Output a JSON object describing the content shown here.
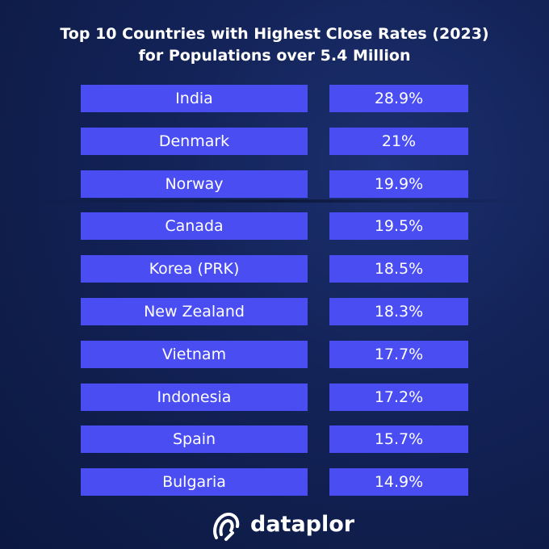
{
  "header": {
    "title": [
      "Top 10 Countries with Highest Close Rates (2023)",
      "for Populations over 5.4 Million"
    ]
  },
  "table": {
    "rows": [
      [
        "India",
        "28.9%"
      ],
      [
        "Denmark",
        "21%"
      ],
      [
        "Norway",
        "19.9%"
      ],
      [
        "Canada",
        "19.5%"
      ],
      [
        "Korea (PRK)",
        "18.5%"
      ],
      [
        "New Zealand",
        "18.3%"
      ],
      [
        "Vietnam",
        "17.7%"
      ],
      [
        "Indonesia",
        "17.2%"
      ],
      [
        "Spain",
        "15.7%"
      ],
      [
        "Bulgaria",
        "14.9%"
      ]
    ]
  },
  "footer": {
    "brand": "dataplor"
  }
}
